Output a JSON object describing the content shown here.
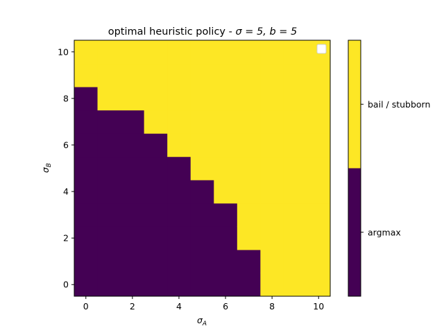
{
  "chart_data": {
    "type": "heatmap",
    "title_text": "optimal heuristic policy - ",
    "title_math": "σ = 5, b = 5",
    "x_axis": {
      "symbol": "σ",
      "subscript": "A",
      "values": [
        0,
        1,
        2,
        3,
        4,
        5,
        6,
        7,
        8,
        9,
        10
      ],
      "tick_values": [
        0,
        2,
        4,
        6,
        8,
        10
      ],
      "tick_labels": [
        "0",
        "2",
        "4",
        "6",
        "8",
        "10"
      ],
      "lim": [
        -0.5,
        10.5
      ]
    },
    "y_axis": {
      "symbol": "σ",
      "subscript": "B",
      "values": [
        0,
        1,
        2,
        3,
        4,
        5,
        6,
        7,
        8,
        9,
        10
      ],
      "tick_values": [
        0,
        2,
        4,
        6,
        8,
        10
      ],
      "tick_labels": [
        "0",
        "2",
        "4",
        "6",
        "8",
        "10"
      ],
      "lim": [
        -0.5,
        10.5
      ]
    },
    "categories": [
      "argmax",
      "bail / stubborn"
    ],
    "colors": {
      "argmax": "#440154",
      "bail / stubborn": "#fde725"
    },
    "boundary": {
      "description": "argmax region: y <= max_y_argmax[x]",
      "max_y_argmax": [
        8,
        7,
        7,
        6,
        5,
        4,
        3,
        1,
        -1,
        -1,
        -1
      ]
    },
    "legend": {
      "position": "top-right",
      "entries": []
    },
    "grid": false
  }
}
